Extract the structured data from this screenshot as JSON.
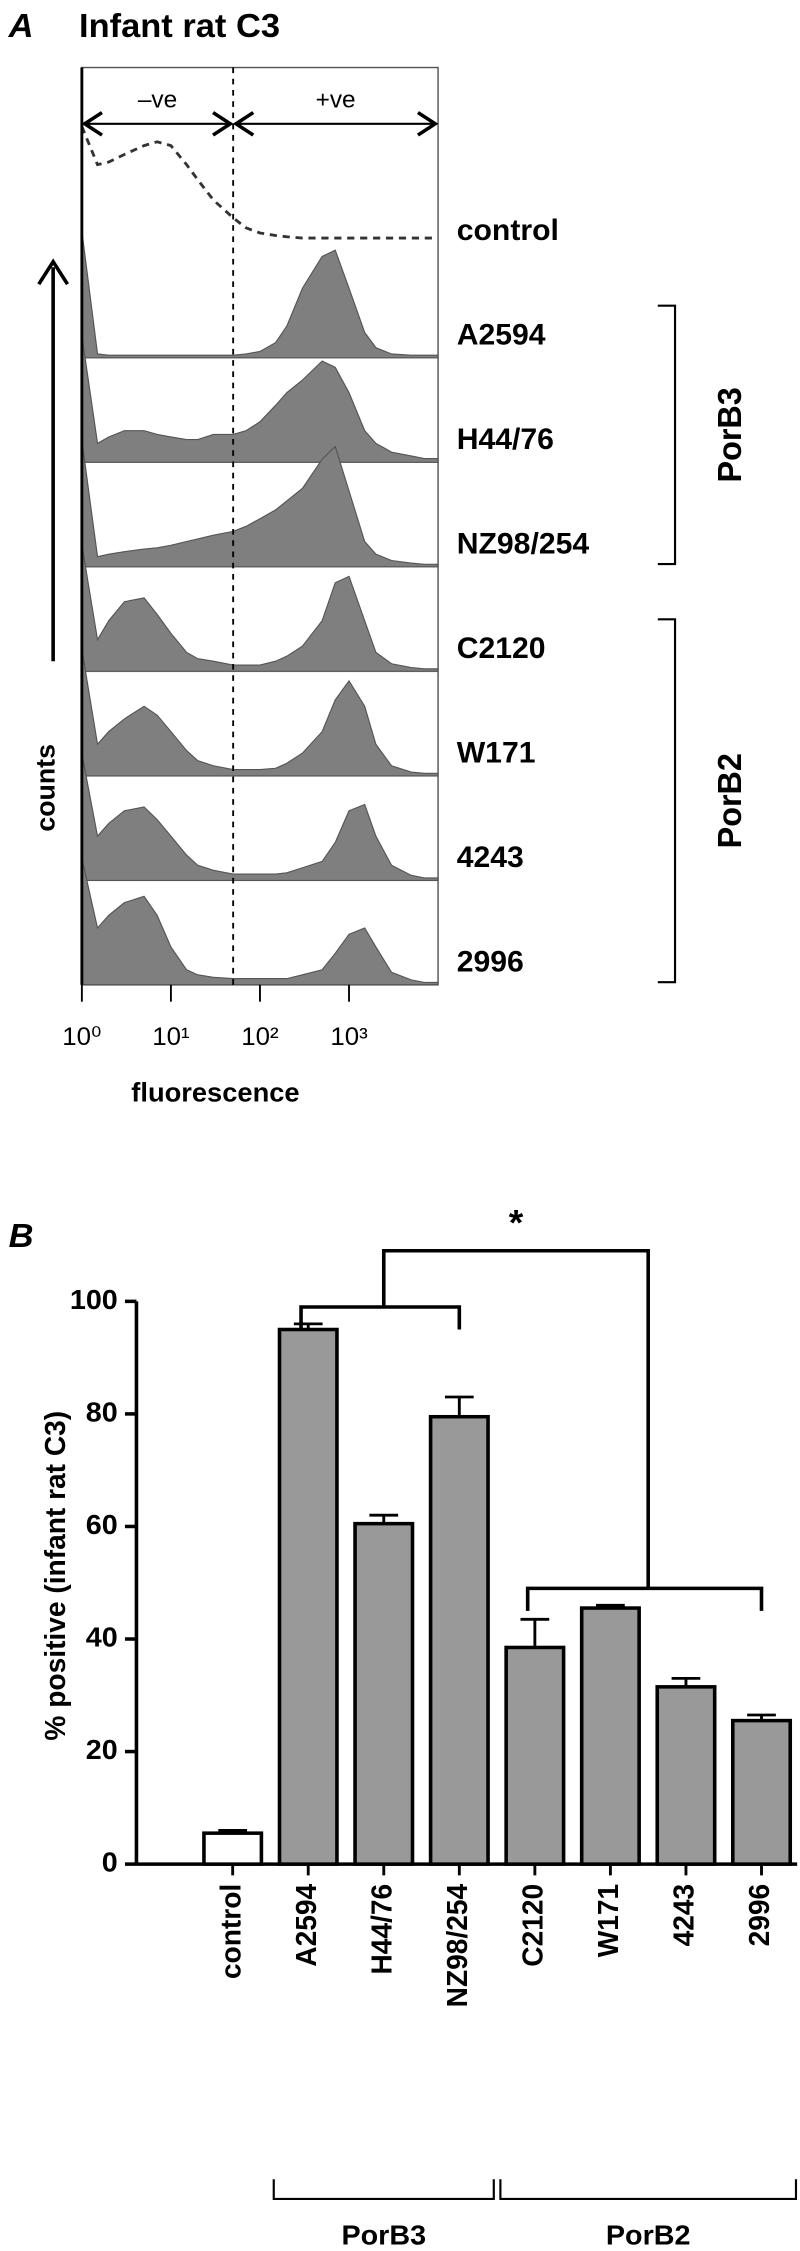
{
  "chart_data": [
    {
      "type": "density",
      "panel": "A",
      "title": "Infant rat C3",
      "xlabel": "fluorescence",
      "ylabel": "counts",
      "log_x": true,
      "xlim": [
        1,
        10000
      ],
      "xticks": [
        {
          "value": 1,
          "label": "10⁰"
        },
        {
          "value": 10,
          "label": "10¹"
        },
        {
          "value": 100,
          "label": "10²"
        },
        {
          "value": 1000,
          "label": "10³"
        }
      ],
      "gate": 50,
      "gate_labels": [
        "–ve",
        "+ve"
      ],
      "x": [
        1,
        1.5,
        2,
        3,
        5,
        7,
        10,
        15,
        20,
        30,
        50,
        70,
        100,
        150,
        200,
        300,
        500,
        700,
        1000,
        1500,
        2000,
        3000,
        5000,
        7000,
        10000
      ],
      "series": [
        {
          "name": "control",
          "color": "#333333",
          "dash": true,
          "values": [
            100,
            70,
            72,
            78,
            85,
            88,
            85,
            70,
            58,
            42,
            28,
            20,
            16,
            14,
            13,
            12,
            12,
            12,
            12,
            12,
            12,
            12,
            12,
            12,
            12
          ]
        },
        {
          "name": "A2594",
          "color": "#7f7f7f",
          "dash": false,
          "values": [
            100,
            3,
            2,
            2,
            2,
            2,
            2,
            2,
            2,
            2,
            2,
            3,
            5,
            12,
            25,
            55,
            80,
            85,
            55,
            20,
            8,
            3,
            2,
            2,
            2
          ]
        },
        {
          "name": "H44/76",
          "color": "#7f7f7f",
          "dash": false,
          "values": [
            100,
            15,
            20,
            25,
            25,
            22,
            20,
            18,
            18,
            22,
            22,
            25,
            32,
            45,
            55,
            65,
            80,
            75,
            55,
            25,
            15,
            8,
            5,
            3,
            3
          ]
        },
        {
          "name": "NZ98/254",
          "color": "#7f7f7f",
          "dash": false,
          "values": [
            100,
            8,
            10,
            12,
            14,
            15,
            17,
            20,
            22,
            25,
            28,
            32,
            38,
            45,
            52,
            62,
            85,
            95,
            60,
            20,
            10,
            5,
            3,
            2,
            2
          ]
        },
        {
          "name": "C2120",
          "color": "#7f7f7f",
          "dash": false,
          "values": [
            100,
            25,
            40,
            55,
            58,
            45,
            30,
            15,
            10,
            8,
            5,
            5,
            5,
            8,
            12,
            20,
            40,
            70,
            75,
            40,
            15,
            6,
            3,
            2,
            2
          ]
        },
        {
          "name": "W171",
          "color": "#7f7f7f",
          "dash": false,
          "values": [
            100,
            25,
            35,
            45,
            55,
            48,
            35,
            20,
            12,
            8,
            5,
            5,
            5,
            6,
            10,
            18,
            35,
            60,
            75,
            55,
            25,
            8,
            3,
            2,
            2
          ]
        },
        {
          "name": "4243",
          "color": "#7f7f7f",
          "dash": false,
          "values": [
            100,
            35,
            45,
            55,
            58,
            48,
            35,
            20,
            12,
            8,
            5,
            5,
            5,
            5,
            6,
            10,
            15,
            30,
            55,
            60,
            35,
            12,
            4,
            2,
            2
          ]
        },
        {
          "name": "2996",
          "color": "#7f7f7f",
          "dash": false,
          "values": [
            100,
            45,
            55,
            65,
            70,
            55,
            30,
            12,
            8,
            6,
            5,
            5,
            5,
            5,
            5,
            8,
            12,
            25,
            40,
            45,
            30,
            10,
            4,
            2,
            2
          ]
        }
      ],
      "groups": [
        {
          "name": "PorB3",
          "span": [
            1,
            3
          ]
        },
        {
          "name": "PorB2",
          "span": [
            4,
            7
          ]
        }
      ]
    },
    {
      "type": "bar",
      "panel": "B",
      "ylabel": "% positive (infant rat C3)",
      "categories": [
        "control",
        "A2594",
        "H44/76",
        "NZ98/254",
        "C2120",
        "W171",
        "4243",
        "2996"
      ],
      "values": [
        5.5,
        95,
        60.5,
        79.5,
        38.5,
        45.5,
        31.5,
        25.5
      ],
      "errors": [
        0.5,
        1,
        1.5,
        3.5,
        5,
        0.5,
        1.5,
        1
      ],
      "colors": [
        "#ffffff",
        "#999999",
        "#999999",
        "#999999",
        "#999999",
        "#999999",
        "#999999",
        "#999999"
      ],
      "ylim": [
        0,
        100
      ],
      "yticks": [
        0,
        20,
        40,
        60,
        80,
        100
      ],
      "groups": [
        {
          "name": "PorB3",
          "span": [
            1,
            3
          ]
        },
        {
          "name": "PorB2",
          "span": [
            4,
            7
          ]
        }
      ],
      "significance": {
        "label": "*",
        "between": [
          0,
          1
        ]
      }
    }
  ]
}
